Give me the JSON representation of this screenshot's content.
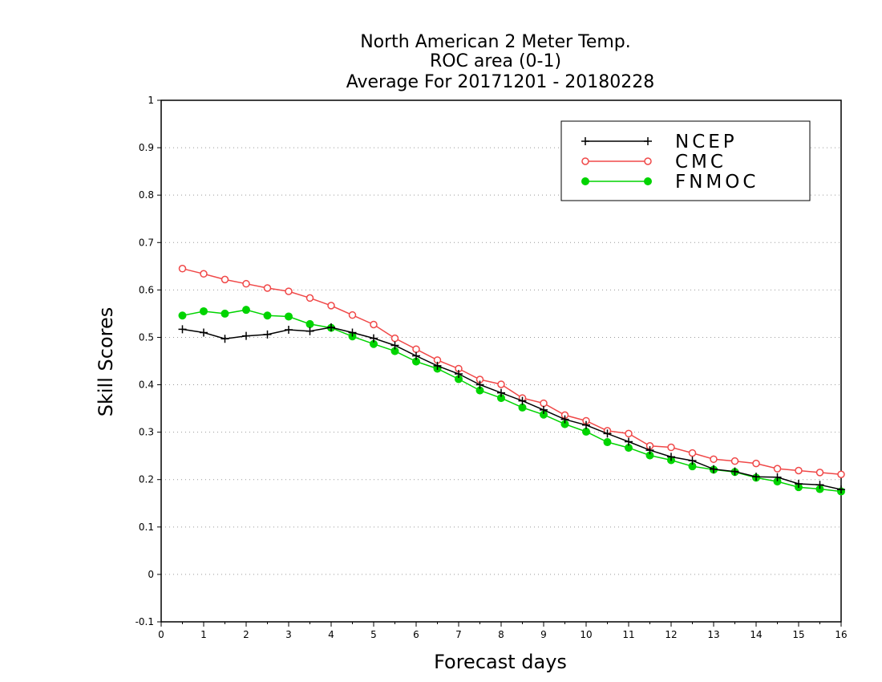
{
  "chart_data": {
    "type": "line",
    "title_lines": [
      "North American 2 Meter Temp.",
      "ROC area (0-1)",
      "Average For 20171201 - 20180228"
    ],
    "xlabel": "Forecast days",
    "ylabel": "Skill Scores",
    "xlim": [
      0,
      16
    ],
    "ylim": [
      -0.1,
      1
    ],
    "x_ticks": [
      0,
      1,
      2,
      3,
      4,
      5,
      6,
      7,
      8,
      9,
      10,
      11,
      12,
      13,
      14,
      15,
      16
    ],
    "x_tick_labels": [
      "0",
      "1",
      "2",
      "3",
      "4",
      "5",
      "6",
      "7",
      "8",
      "9",
      "10",
      "11",
      "12",
      "13",
      "14",
      "15",
      "16"
    ],
    "y_ticks": [
      -0.1,
      0,
      0.1,
      0.2,
      0.3,
      0.4,
      0.5,
      0.6,
      0.7,
      0.8,
      0.9,
      1
    ],
    "y_tick_labels": [
      "-0.1",
      "0",
      "0.1",
      "0.2",
      "0.3",
      "0.4",
      "0.5",
      "0.6",
      "0.7",
      "0.8",
      "0.9",
      "1"
    ],
    "grid": "horizontal dotted",
    "legend_position": "top-right",
    "x": [
      0.5,
      1,
      1.5,
      2,
      2.5,
      3,
      3.5,
      4,
      4.5,
      5,
      5.5,
      6,
      6.5,
      7,
      7.5,
      8,
      8.5,
      9,
      9.5,
      10,
      10.5,
      11,
      11.5,
      12,
      12.5,
      13,
      13.5,
      14,
      14.5,
      15,
      15.5,
      16
    ],
    "series": [
      {
        "name": "NCEP",
        "color": "#000000",
        "marker": "plus",
        "values": [
          0.517,
          0.51,
          0.497,
          0.503,
          0.506,
          0.516,
          0.513,
          0.521,
          0.51,
          0.498,
          0.483,
          0.461,
          0.44,
          0.423,
          0.4,
          0.383,
          0.366,
          0.347,
          0.327,
          0.315,
          0.297,
          0.28,
          0.262,
          0.248,
          0.24,
          0.222,
          0.217,
          0.206,
          0.205,
          0.191,
          0.189,
          0.179
        ]
      },
      {
        "name": "CMC",
        "color": "#f04848",
        "marker": "open-circle",
        "values": [
          0.645,
          0.634,
          0.622,
          0.613,
          0.604,
          0.597,
          0.583,
          0.567,
          0.547,
          0.527,
          0.498,
          0.475,
          0.452,
          0.434,
          0.411,
          0.401,
          0.372,
          0.361,
          0.336,
          0.324,
          0.303,
          0.297,
          0.271,
          0.268,
          0.256,
          0.243,
          0.239,
          0.234,
          0.223,
          0.219,
          0.215,
          0.211
        ]
      },
      {
        "name": "FNMOC",
        "color": "#00d400",
        "marker": "filled-circle",
        "values": [
          0.546,
          0.555,
          0.55,
          0.558,
          0.546,
          0.544,
          0.528,
          0.52,
          0.502,
          0.486,
          0.471,
          0.449,
          0.434,
          0.412,
          0.388,
          0.372,
          0.352,
          0.337,
          0.317,
          0.301,
          0.279,
          0.267,
          0.251,
          0.241,
          0.228,
          0.221,
          0.216,
          0.204,
          0.196,
          0.184,
          0.18,
          0.175
        ]
      }
    ]
  }
}
